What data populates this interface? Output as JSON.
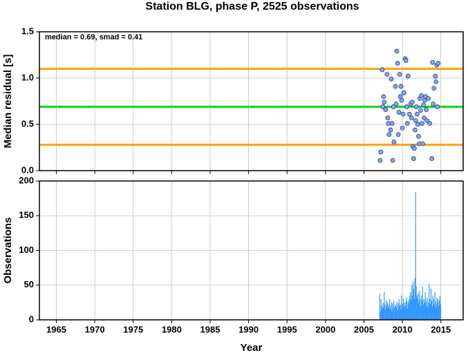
{
  "title": "Station BLG, phase P, 2525 observations",
  "chart_data": [
    {
      "type": "scatter",
      "ylabel": "Median residual [s]",
      "annotation": "median = 0.69, smad = 0.41",
      "xlim": [
        1962.8,
        2017.9
      ],
      "xticks": [
        1965,
        1970,
        1975,
        1980,
        1985,
        1990,
        1995,
        2000,
        2005,
        2010,
        2015
      ],
      "ylim": [
        0,
        1.5
      ],
      "yticks": [
        {
          "value": 0,
          "label": "0.0"
        },
        0.5,
        {
          "value": 1,
          "label": "1.0"
        },
        1.5
      ],
      "grid": true,
      "color": "#80a8f0",
      "hlines": [
        {
          "value": 1.1,
          "color": "#ffa500"
        },
        {
          "value": 0.69,
          "color": "#00e000"
        },
        {
          "value": 0.28,
          "color": "#ffa500"
        }
      ],
      "x": [
        2007.1,
        2007.19,
        2007.37,
        2007.46,
        2007.55,
        2007.64,
        2007.82,
        2008.0,
        2008.09,
        2008.18,
        2008.27,
        2008.46,
        2008.55,
        2008.64,
        2008.73,
        2008.82,
        2008.91,
        2009.09,
        2009.18,
        2009.27,
        2009.37,
        2009.46,
        2009.55,
        2009.64,
        2009.73,
        2009.82,
        2009.91,
        2010.0,
        2010.1,
        2010.19,
        2010.37,
        2010.46,
        2010.55,
        2010.64,
        2010.73,
        2010.91,
        2011.09,
        2011.19,
        2011.28,
        2011.37,
        2011.46,
        2011.55,
        2011.64,
        2011.73,
        2011.82,
        2011.91,
        2012.0,
        2012.1,
        2012.19,
        2012.28,
        2012.37,
        2012.46,
        2012.55,
        2012.64,
        2012.73,
        2012.82,
        2012.91,
        2013.0,
        2013.1,
        2013.19,
        2013.37,
        2013.55,
        2013.82,
        2013.91,
        2014.0,
        2014.1,
        2014.28,
        2014.37,
        2014.46,
        2014.55,
        2014.64
      ],
      "values": [
        0.11,
        0.2,
        1.09,
        0.69,
        0.8,
        0.74,
        0.66,
        1.04,
        0.57,
        0.51,
        0.39,
        0.44,
        0.99,
        0.51,
        0.11,
        0.69,
        0.31,
        0.91,
        0.72,
        1.29,
        1.16,
        0.39,
        0.63,
        1.04,
        0.8,
        0.91,
        0.76,
        0.46,
        0.61,
        0.84,
        1.21,
        1.19,
        0.69,
        0.51,
        1.02,
        0.61,
        0.72,
        0.57,
        0.74,
        0.26,
        0.13,
        0.24,
        0.44,
        0.54,
        0.69,
        0.61,
        0.5,
        0.37,
        0.29,
        0.78,
        0.65,
        0.81,
        0.51,
        0.29,
        0.71,
        0.57,
        0.76,
        0.8,
        0.66,
        0.54,
        0.78,
        0.51,
        0.13,
        1.17,
        0.72,
        0.89,
        1.02,
        0.96,
        1.14,
        0.69,
        1.16
      ]
    },
    {
      "type": "bar",
      "xlabel": "Year",
      "ylabel": "Observations",
      "xlim": [
        1962.8,
        2017.9
      ],
      "xticks": [
        1965,
        1970,
        1975,
        1980,
        1985,
        1990,
        1995,
        2000,
        2005,
        2010,
        2015
      ],
      "ylim": [
        0,
        200
      ],
      "yticks": [
        0,
        50,
        100,
        150,
        200
      ],
      "grid": true,
      "color": "#3399ff",
      "x": [
        2007.0,
        2007.08,
        2007.17,
        2007.25,
        2007.33,
        2007.42,
        2007.5,
        2007.58,
        2007.67,
        2007.75,
        2007.83,
        2007.92,
        2008.0,
        2008.08,
        2008.17,
        2008.25,
        2008.33,
        2008.42,
        2008.5,
        2008.58,
        2008.67,
        2008.75,
        2008.83,
        2008.92,
        2009.0,
        2009.08,
        2009.17,
        2009.25,
        2009.33,
        2009.42,
        2009.5,
        2009.58,
        2009.67,
        2009.75,
        2009.83,
        2009.92,
        2010.0,
        2010.08,
        2010.17,
        2010.25,
        2010.33,
        2010.42,
        2010.5,
        2010.58,
        2010.67,
        2010.75,
        2010.83,
        2010.92,
        2011.0,
        2011.08,
        2011.17,
        2011.25,
        2011.33,
        2011.42,
        2011.5,
        2011.58,
        2011.67,
        2011.75,
        2011.83,
        2011.92,
        2012.0,
        2012.08,
        2012.17,
        2012.25,
        2012.33,
        2012.42,
        2012.5,
        2012.58,
        2012.67,
        2012.75,
        2012.83,
        2012.92,
        2013.0,
        2013.08,
        2013.17,
        2013.25,
        2013.33,
        2013.42,
        2013.5,
        2013.58,
        2013.67,
        2013.75,
        2013.83,
        2013.92,
        2014.0,
        2014.08,
        2014.17,
        2014.25,
        2014.33,
        2014.42,
        2014.5,
        2014.58,
        2014.67,
        2014.75,
        2014.83,
        2014.92
      ],
      "values": [
        38,
        12,
        30,
        20,
        16,
        24,
        18,
        40,
        22,
        14,
        28,
        20,
        25,
        18,
        22,
        30,
        15,
        20,
        26,
        12,
        24,
        19,
        28,
        16,
        20,
        22,
        18,
        26,
        14,
        24,
        30,
        20,
        22,
        15,
        35,
        24,
        22,
        30,
        18,
        25,
        20,
        28,
        32,
        16,
        26,
        22,
        30,
        35,
        40,
        28,
        50,
        35,
        55,
        45,
        30,
        60,
        184,
        48,
        35,
        30,
        38,
        25,
        42,
        30,
        20,
        35,
        28,
        48,
        22,
        30,
        25,
        40,
        28,
        20,
        32,
        18,
        25,
        52,
        30,
        22,
        45,
        28,
        20,
        35,
        30,
        22,
        40,
        26,
        18,
        32,
        24,
        30,
        20,
        28,
        34,
        22
      ]
    }
  ]
}
